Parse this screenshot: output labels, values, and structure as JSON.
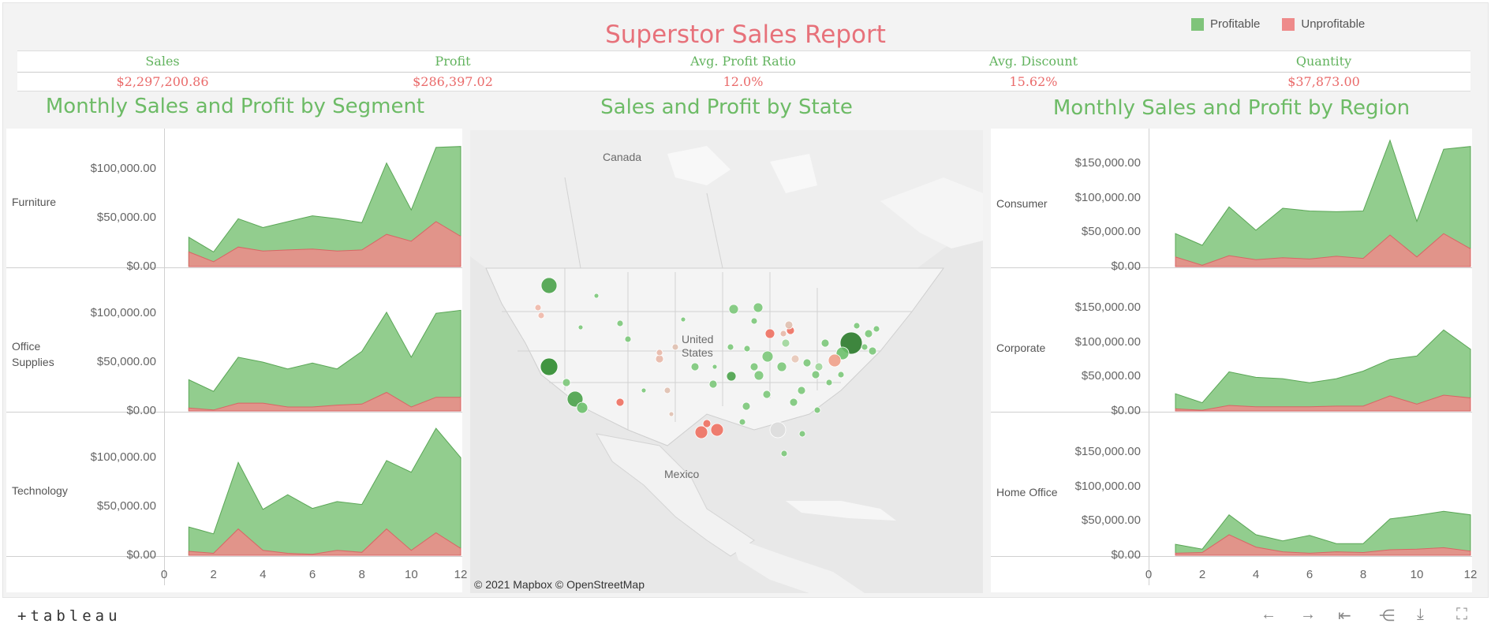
{
  "title": "Superstor Sales Report",
  "legend": [
    {
      "label": "Profitable",
      "color": "#7fc47a"
    },
    {
      "label": "Unprofitable",
      "color": "#ee8a8a"
    }
  ],
  "kpis": [
    {
      "label": "Sales",
      "value": "$2,297,200.86"
    },
    {
      "label": "Profit",
      "value": "$286,397.02"
    },
    {
      "label": "Avg. Profit Ratio",
      "value": "12.0%"
    },
    {
      "label": "Avg. Discount",
      "value": "15.62%"
    },
    {
      "label": "Quantity",
      "value": "$37,873.00"
    }
  ],
  "sections": {
    "segment": "Monthly Sales and Profit by Segment",
    "state": "Sales and Profit by State",
    "region": "Monthly Sales and Profit  by Region"
  },
  "map": {
    "labels": {
      "canada": "Canada",
      "us": "United States",
      "mexico": "Mexico"
    },
    "attribution": "© 2021 Mapbox  © OpenStreetMap"
  },
  "footer": {
    "logo": "+tableau"
  },
  "chart_data": [
    {
      "type": "area",
      "title": "Monthly Sales and Profit by Segment",
      "ylim": [
        0,
        130000
      ],
      "x_ticks": [
        "0",
        "2",
        "4",
        "6",
        "8",
        "10",
        "12"
      ],
      "y_ticks": [
        "$0.00",
        "$50,000.00",
        "$100,000.00"
      ],
      "rows": [
        {
          "label": "Furniture",
          "x": [
            1,
            2,
            3,
            4,
            5,
            6,
            7,
            8,
            9,
            10,
            11,
            12
          ],
          "series": [
            {
              "name": "Profitable",
              "values": [
                30000,
                15000,
                49000,
                40000,
                46000,
                52000,
                49000,
                45000,
                106000,
                58000,
                122000,
                123000
              ]
            },
            {
              "name": "Unprofitable",
              "values": [
                15000,
                5000,
                20000,
                16000,
                17000,
                18000,
                16000,
                17000,
                33000,
                26000,
                46000,
                31000
              ]
            }
          ]
        },
        {
          "label": "Office\nSupplies",
          "x": [
            1,
            2,
            3,
            4,
            5,
            6,
            7,
            8,
            9,
            10,
            11,
            12
          ],
          "series": [
            {
              "name": "Profitable",
              "values": [
                32000,
                20000,
                55000,
                50000,
                43000,
                49000,
                43000,
                61000,
                101000,
                55000,
                100000,
                103000
              ]
            },
            {
              "name": "Unprofitable",
              "values": [
                3000,
                1000,
                8000,
                8000,
                4000,
                4000,
                6000,
                7000,
                19000,
                4000,
                14000,
                14000
              ]
            }
          ]
        },
        {
          "label": "Technology",
          "x": [
            1,
            2,
            3,
            4,
            5,
            6,
            7,
            8,
            9,
            10,
            11,
            12
          ],
          "series": [
            {
              "name": "Profitable",
              "values": [
                29000,
                22000,
                95000,
                47000,
                62000,
                48000,
                55000,
                52000,
                97000,
                85000,
                130000,
                100000
              ]
            },
            {
              "name": "Unprofitable",
              "values": [
                4000,
                2000,
                27000,
                5000,
                2000,
                1000,
                5000,
                3000,
                27000,
                5000,
                23000,
                7000
              ]
            }
          ]
        }
      ]
    },
    {
      "type": "area",
      "title": "Monthly Sales and Profit  by Region",
      "ylim": [
        0,
        185000
      ],
      "x_ticks": [
        "0",
        "2",
        "4",
        "6",
        "8",
        "10",
        "12"
      ],
      "y_ticks": [
        "$0.00",
        "$50,000.00",
        "$100,000.00",
        "$150,000.00"
      ],
      "rows": [
        {
          "label": "Consumer",
          "x": [
            1,
            2,
            3,
            4,
            5,
            6,
            7,
            8,
            9,
            10,
            11,
            12
          ],
          "series": [
            {
              "name": "Profitable",
              "values": [
                48000,
                31000,
                87000,
                53000,
                85000,
                81000,
                80000,
                81000,
                184000,
                66000,
                171000,
                175000
              ]
            },
            {
              "name": "Unprofitable",
              "values": [
                14000,
                2000,
                16000,
                10000,
                13000,
                11000,
                15000,
                12000,
                46000,
                14000,
                48000,
                26000
              ]
            }
          ]
        },
        {
          "label": "Corporate",
          "x": [
            1,
            2,
            3,
            4,
            5,
            6,
            7,
            8,
            9,
            10,
            11,
            12
          ],
          "series": [
            {
              "name": "Profitable",
              "values": [
                25000,
                12000,
                57000,
                49000,
                47000,
                41000,
                47000,
                58000,
                75000,
                80000,
                118000,
                90000
              ]
            },
            {
              "name": "Unprofitable",
              "values": [
                3000,
                1000,
                8000,
                6000,
                6000,
                6000,
                7000,
                7000,
                22000,
                10000,
                23000,
                19000
              ]
            }
          ]
        },
        {
          "label": "Home Office",
          "x": [
            1,
            2,
            3,
            4,
            5,
            6,
            7,
            8,
            9,
            10,
            11,
            12
          ],
          "series": [
            {
              "name": "Profitable",
              "values": [
                16000,
                9000,
                59000,
                30000,
                21000,
                29000,
                17000,
                17000,
                53000,
                58000,
                64000,
                59000
              ]
            },
            {
              "name": "Unprofitable",
              "values": [
                3000,
                4000,
                30000,
                12000,
                5000,
                3000,
                5000,
                4000,
                8000,
                9000,
                11000,
                6000
              ]
            }
          ]
        }
      ]
    }
  ]
}
